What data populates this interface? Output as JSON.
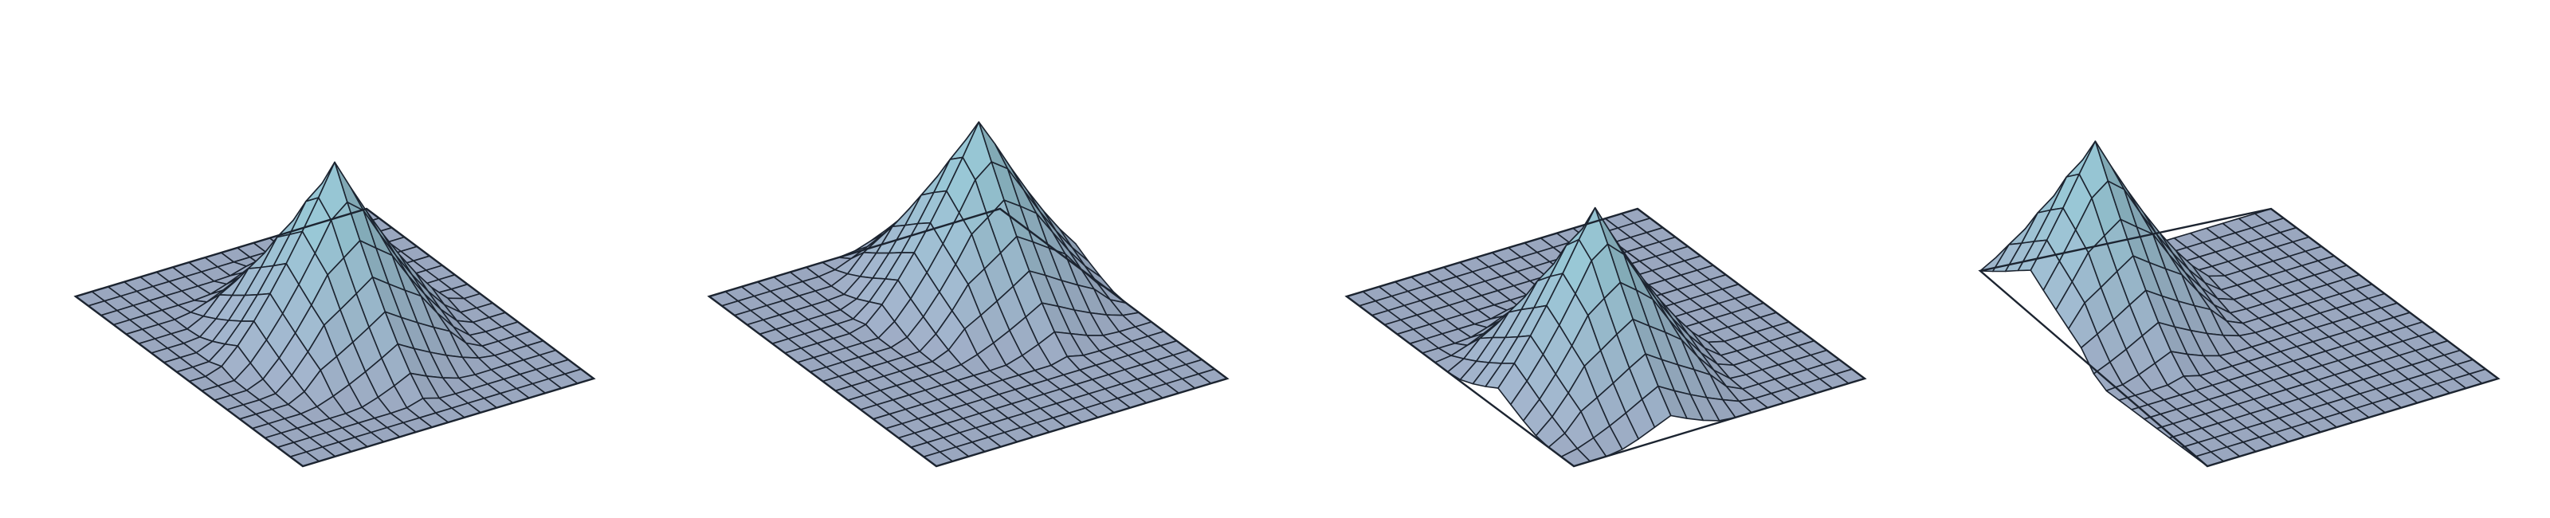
{
  "figure": {
    "background": "#ffffff",
    "surface_base_color": "#9aa7bf",
    "surface_peak_color": "#7fa6b2",
    "grid_line_color": "#1c2430",
    "grid_divisions": 18,
    "peak_height_factor": 0.55,
    "panels": [
      {
        "name": "surface-peak-center",
        "peak_u": 0.5,
        "peak_v": 0.5
      },
      {
        "name": "surface-peak-back-right",
        "peak_u": 0.33,
        "peak_v": 0.67
      },
      {
        "name": "surface-peak-back-left",
        "peak_u": 0.67,
        "peak_v": 0.33
      },
      {
        "name": "surface-peak-far-back",
        "peak_u": 0.22,
        "peak_v": 0.22
      }
    ]
  }
}
